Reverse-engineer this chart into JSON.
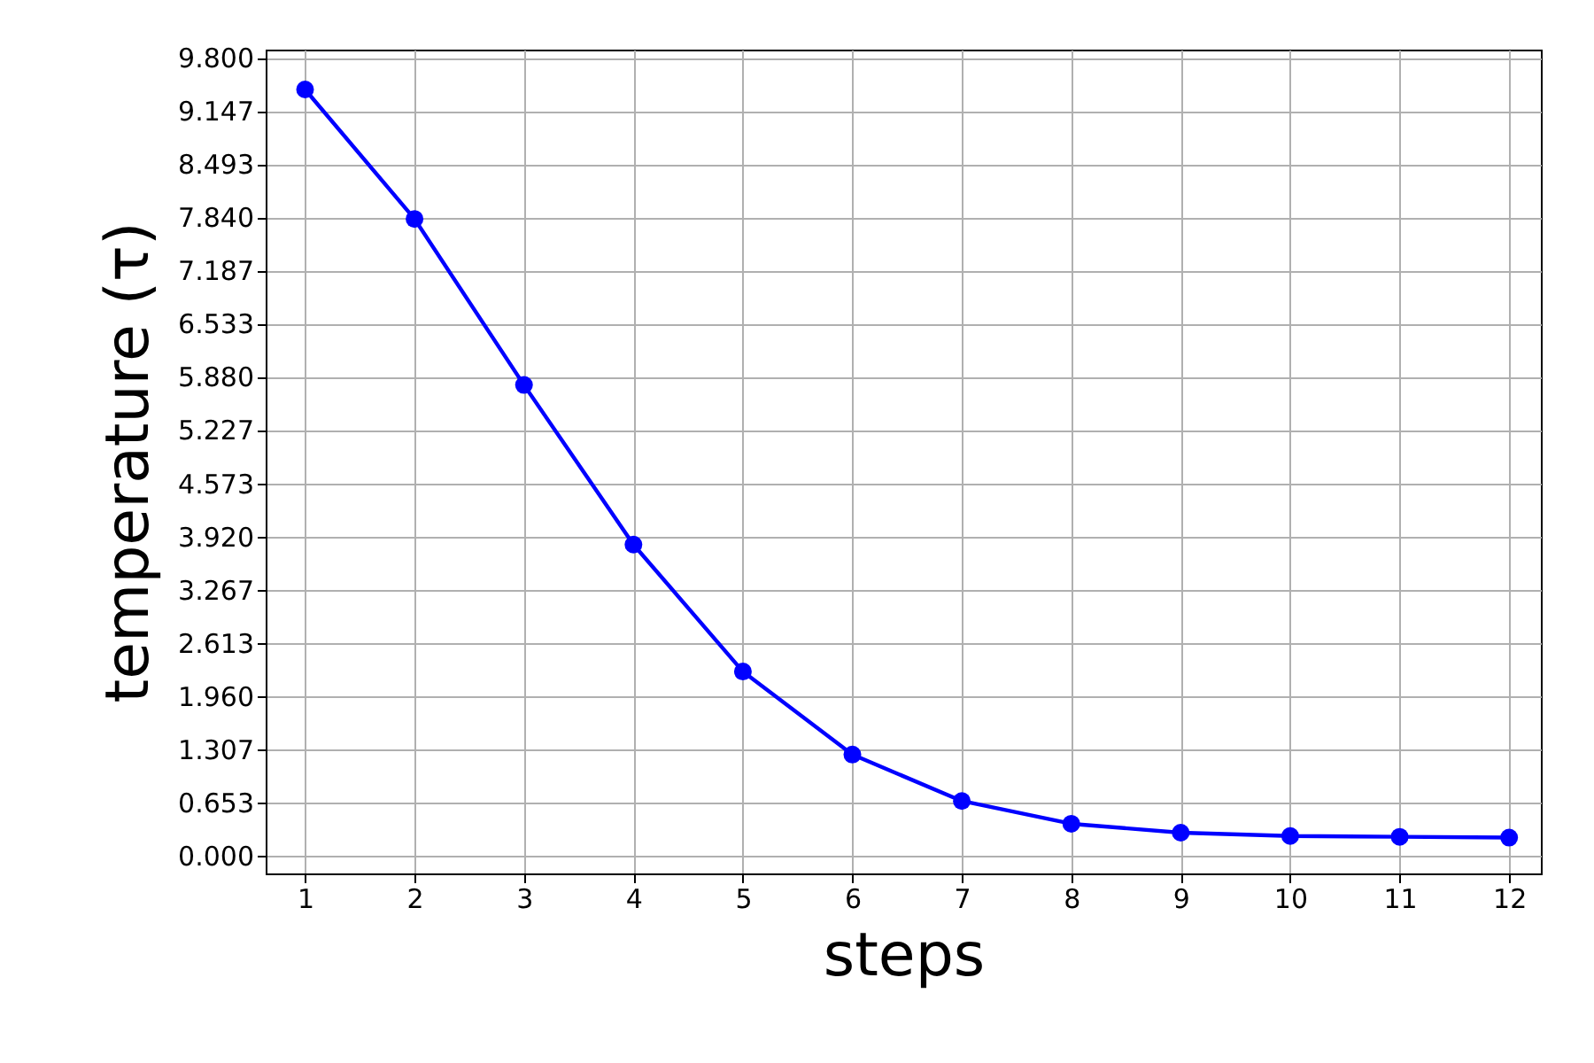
{
  "chart_data": {
    "type": "line",
    "xlabel": "steps",
    "ylabel": "temperature (τ)",
    "x": [
      1,
      2,
      3,
      4,
      5,
      6,
      7,
      8,
      9,
      10,
      11,
      12
    ],
    "series": [
      {
        "color": "#0000ff",
        "values": [
          9.41,
          7.82,
          5.78,
          3.82,
          2.26,
          1.24,
          0.67,
          0.39,
          0.28,
          0.24,
          0.23,
          0.22
        ]
      }
    ],
    "xlim": [
      0.64,
      12.29
    ],
    "xticks": [
      1,
      2,
      3,
      4,
      5,
      6,
      7,
      8,
      9,
      10,
      11,
      12
    ],
    "ylim": [
      -0.22,
      9.9
    ],
    "yticks": [
      {
        "value": 0,
        "label": "0.000"
      },
      {
        "value": 0.653,
        "label": "0.653"
      },
      {
        "value": 1.307,
        "label": "1.307"
      },
      {
        "value": 1.96,
        "label": "1.960"
      },
      {
        "value": 2.613,
        "label": "2.613"
      },
      {
        "value": 3.267,
        "label": "3.267"
      },
      {
        "value": 3.92,
        "label": "3.920"
      },
      {
        "value": 4.573,
        "label": "4.573"
      },
      {
        "value": 5.227,
        "label": "5.227"
      },
      {
        "value": 5.88,
        "label": "5.880"
      },
      {
        "value": 6.533,
        "label": "6.533"
      },
      {
        "value": 7.187,
        "label": "7.187"
      },
      {
        "value": 7.84,
        "label": "7.840"
      },
      {
        "value": 8.493,
        "label": "8.493"
      },
      {
        "value": 9.147,
        "label": "9.147"
      },
      {
        "value": 9.8,
        "label": "9.800"
      }
    ],
    "grid": true,
    "marker": "circle",
    "line_style": "solid"
  }
}
